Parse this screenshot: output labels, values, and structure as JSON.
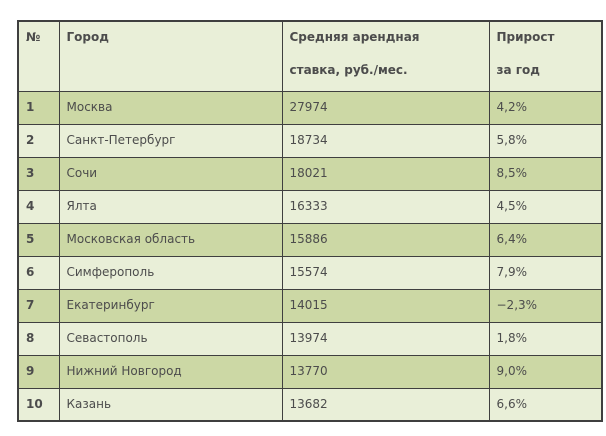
{
  "colors": {
    "row_shaded_bg": "#ccd8a5",
    "row_plain_bg": "#e9efd8",
    "header_bg": "#e9efd8",
    "border": "#3f3f3f",
    "text": "#4c4c4c",
    "page_bg": "#ffffff"
  },
  "table": {
    "headers": [
      {
        "line1": "№",
        "line2": ""
      },
      {
        "line1": "Город",
        "line2": ""
      },
      {
        "line1": "Средняя арендная",
        "line2": "ставка, руб./мес."
      },
      {
        "line1": "Прирост",
        "line2": "за год"
      }
    ],
    "rows": [
      {
        "num": "1",
        "city": "Москва",
        "rate": "27974",
        "growth": "4,2%"
      },
      {
        "num": "2",
        "city": "Санкт-Петербург",
        "rate": "18734",
        "growth": "5,8%"
      },
      {
        "num": "3",
        "city": "Сочи",
        "rate": "18021",
        "growth": "8,5%"
      },
      {
        "num": "4",
        "city": "Ялта",
        "rate": "16333",
        "growth": "4,5%"
      },
      {
        "num": "5",
        "city": "Московская область",
        "rate": "15886",
        "growth": "6,4%"
      },
      {
        "num": "6",
        "city": "Симферополь",
        "rate": "15574",
        "growth": "7,9%"
      },
      {
        "num": "7",
        "city": "Екатеринбург",
        "rate": "14015",
        "growth": "−2,3%"
      },
      {
        "num": "8",
        "city": "Севастополь",
        "rate": "13974",
        "growth": "1,8%"
      },
      {
        "num": "9",
        "city": "Нижний Новгород",
        "rate": "13770",
        "growth": "9,0%"
      },
      {
        "num": "10",
        "city": "Казань",
        "rate": "13682",
        "growth": "6,6%"
      }
    ]
  },
  "chart_data": {
    "type": "table",
    "title": "",
    "columns": [
      "№",
      "Город",
      "Средняя арендная ставка, руб./мес.",
      "Прирост за год"
    ],
    "rows": [
      [
        1,
        "Москва",
        27974,
        "4,2%"
      ],
      [
        2,
        "Санкт-Петербург",
        18734,
        "5,8%"
      ],
      [
        3,
        "Сочи",
        18021,
        "8,5%"
      ],
      [
        4,
        "Ялта",
        16333,
        "4,5%"
      ],
      [
        5,
        "Московская область",
        15886,
        "6,4%"
      ],
      [
        6,
        "Симферополь",
        15574,
        "7,9%"
      ],
      [
        7,
        "Екатеринбург",
        14015,
        "−2,3%"
      ],
      [
        8,
        "Севастополь",
        13974,
        "1,8%"
      ],
      [
        9,
        "Нижний Новгород",
        13770,
        "9,0%"
      ],
      [
        10,
        "Казань",
        13682,
        "6,6%"
      ]
    ]
  }
}
